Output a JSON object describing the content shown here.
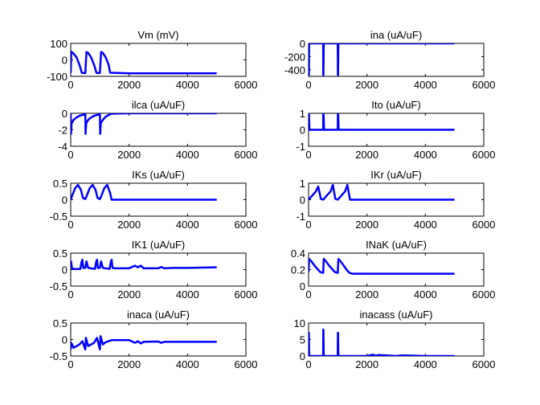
{
  "chart_data": [
    {
      "type": "line",
      "title": "Vm (mV)",
      "xlim": [
        0,
        6000
      ],
      "ylim": [
        -100,
        100
      ],
      "xticks": [
        "0",
        "2000",
        "4000",
        "6000"
      ],
      "yticks": [
        "-100",
        "0",
        "100"
      ],
      "series": [
        {
          "color": "#0000ff",
          "x": [
            0,
            20,
            100,
            200,
            300,
            380,
            420,
            500,
            540,
            600,
            700,
            800,
            880,
            920,
            1000,
            1040,
            1100,
            1200,
            1300,
            1350,
            2000,
            3000,
            4000,
            5000
          ],
          "y": [
            -80,
            50,
            38,
            15,
            -30,
            -78,
            -80,
            -80,
            48,
            42,
            15,
            -30,
            -78,
            -80,
            -80,
            48,
            42,
            15,
            -30,
            -78,
            -82,
            -82,
            -82,
            -82
          ]
        }
      ]
    },
    {
      "type": "line",
      "title": "ina (uA/uF)",
      "xlim": [
        0,
        6000
      ],
      "ylim": [
        -500,
        0
      ],
      "xticks": [
        "0",
        "2000",
        "4000",
        "6000"
      ],
      "yticks": [
        "-400",
        "-200",
        "0"
      ],
      "series": [
        {
          "color": "#0000ff",
          "x": [
            0,
            5,
            10,
            20,
            500,
            505,
            510,
            520,
            1000,
            1005,
            1010,
            1020,
            5000
          ],
          "y": [
            0,
            -480,
            -480,
            0,
            0,
            -480,
            -480,
            0,
            0,
            -480,
            -480,
            0,
            0
          ]
        }
      ]
    },
    {
      "type": "line",
      "title": "ilca (uA/uF)",
      "xlim": [
        0,
        6000
      ],
      "ylim": [
        -4,
        0
      ],
      "xticks": [
        "0",
        "2000",
        "4000",
        "6000"
      ],
      "yticks": [
        "-4",
        "-2",
        "0"
      ],
      "series": [
        {
          "color": "#0000ff",
          "x": [
            0,
            10,
            30,
            100,
            200,
            300,
            500,
            510,
            530,
            600,
            700,
            800,
            1000,
            1010,
            1030,
            1100,
            1200,
            1300,
            1400,
            2000,
            5000
          ],
          "y": [
            0,
            -2.5,
            -1.2,
            -0.8,
            -0.5,
            -0.3,
            -0.1,
            -2.5,
            -1.2,
            -0.8,
            -0.5,
            -0.3,
            -0.1,
            -2.5,
            -1.2,
            -0.8,
            -0.4,
            -0.2,
            -0.05,
            0,
            0
          ]
        }
      ]
    },
    {
      "type": "line",
      "title": "Ito (uA/uF)",
      "xlim": [
        0,
        6000
      ],
      "ylim": [
        -1,
        1
      ],
      "xticks": [
        "0",
        "2000",
        "4000",
        "6000"
      ],
      "yticks": [
        "-1",
        "0",
        "1"
      ],
      "series": [
        {
          "color": "#0000ff",
          "x": [
            0,
            5,
            15,
            30,
            500,
            505,
            515,
            530,
            1000,
            1005,
            1015,
            1030,
            5000
          ],
          "y": [
            0,
            1,
            0.9,
            0,
            0,
            1,
            0.9,
            0,
            0,
            1,
            0.9,
            0,
            0
          ]
        }
      ]
    },
    {
      "type": "line",
      "title": "IKs (uA/uF)",
      "xlim": [
        0,
        6000
      ],
      "ylim": [
        -0.5,
        0.5
      ],
      "xticks": [
        "0",
        "2000",
        "4000",
        "6000"
      ],
      "yticks": [
        "-0.5",
        "0",
        "0.5"
      ],
      "series": [
        {
          "color": "#0000ff",
          "x": [
            0,
            50,
            150,
            250,
            350,
            420,
            500,
            550,
            650,
            750,
            850,
            920,
            1000,
            1050,
            1150,
            1250,
            1350,
            1400,
            2000,
            3000,
            4000,
            5000
          ],
          "y": [
            0,
            0.12,
            0.35,
            0.45,
            0.3,
            0.05,
            0.02,
            0.12,
            0.35,
            0.45,
            0.3,
            0.05,
            0.02,
            0.12,
            0.35,
            0.45,
            0.2,
            0,
            0,
            0,
            0,
            0
          ]
        }
      ]
    },
    {
      "type": "line",
      "title": "IKr (uA/uF)",
      "xlim": [
        0,
        6000
      ],
      "ylim": [
        -1,
        1
      ],
      "xticks": [
        "0",
        "2000",
        "4000",
        "6000"
      ],
      "yticks": [
        "-1",
        "0",
        "1"
      ],
      "series": [
        {
          "color": "#0000ff",
          "x": [
            0,
            50,
            150,
            250,
            330,
            380,
            420,
            500,
            550,
            650,
            750,
            830,
            880,
            920,
            1000,
            1050,
            1150,
            1250,
            1330,
            1380,
            1420,
            2000,
            5000
          ],
          "y": [
            0,
            0.1,
            0.3,
            0.5,
            0.8,
            0.4,
            0.05,
            0,
            0.1,
            0.3,
            0.5,
            0.9,
            0.4,
            0.05,
            0,
            0.1,
            0.3,
            0.5,
            0.9,
            0.4,
            0,
            0,
            0
          ]
        }
      ]
    },
    {
      "type": "line",
      "title": "IK1 (uA/uF)",
      "xlim": [
        0,
        6000
      ],
      "ylim": [
        -0.5,
        0.5
      ],
      "xticks": [
        "0",
        "2000",
        "4000",
        "6000"
      ],
      "yticks": [
        "-0.5",
        "0",
        "0.5"
      ],
      "series": [
        {
          "color": "#0000ff",
          "x": [
            0,
            10,
            40,
            100,
            330,
            370,
            400,
            430,
            500,
            540,
            600,
            830,
            870,
            900,
            930,
            1000,
            1040,
            1100,
            1330,
            1370,
            1400,
            1430,
            1500,
            2000,
            2200,
            2300,
            2400,
            2500,
            3000,
            3100,
            3200,
            3500,
            4000,
            4500,
            5000
          ],
          "y": [
            0.05,
            0.25,
            0.05,
            0.02,
            0.02,
            0.22,
            0.3,
            0.05,
            0.05,
            0.25,
            0.05,
            0.02,
            0.22,
            0.3,
            0.05,
            0.05,
            0.25,
            0.05,
            0.02,
            0.22,
            0.3,
            0.05,
            0.04,
            0.04,
            0.12,
            0.07,
            0.12,
            0.04,
            0.04,
            0.08,
            0.04,
            0.05,
            0.05,
            0.06,
            0.07
          ]
        }
      ]
    },
    {
      "type": "line",
      "title": "INaK (uA/uF)",
      "xlim": [
        0,
        6000
      ],
      "ylim": [
        0,
        0.4
      ],
      "xticks": [
        "0",
        "2000",
        "4000",
        "6000"
      ],
      "yticks": [
        "0",
        "0.2",
        "0.4"
      ],
      "series": [
        {
          "color": "#0000ff",
          "x": [
            0,
            20,
            100,
            200,
            300,
            400,
            500,
            520,
            600,
            700,
            800,
            900,
            1000,
            1020,
            1100,
            1200,
            1300,
            1400,
            1500,
            2000,
            3000,
            4000,
            5000
          ],
          "y": [
            0.17,
            0.33,
            0.3,
            0.25,
            0.21,
            0.17,
            0.16,
            0.33,
            0.3,
            0.25,
            0.21,
            0.17,
            0.16,
            0.33,
            0.3,
            0.25,
            0.2,
            0.16,
            0.15,
            0.15,
            0.15,
            0.15,
            0.15
          ]
        }
      ]
    },
    {
      "type": "line",
      "title": "inaca (uA/uF)",
      "xlim": [
        0,
        6000
      ],
      "ylim": [
        -0.5,
        0.5
      ],
      "xticks": [
        "0",
        "2000",
        "4000",
        "6000"
      ],
      "yticks": [
        "-0.5",
        "0",
        "0.5"
      ],
      "series": [
        {
          "color": "#0000ff",
          "x": [
            0,
            20,
            100,
            200,
            300,
            400,
            500,
            520,
            600,
            700,
            800,
            900,
            1000,
            1020,
            1100,
            1200,
            1300,
            1400,
            1500,
            2000,
            2200,
            2300,
            2400,
            2500,
            3000,
            3100,
            3200,
            4000,
            5000
          ],
          "y": [
            -0.3,
            -0.1,
            -0.25,
            -0.2,
            -0.15,
            -0.05,
            -0.3,
            0.05,
            -0.2,
            -0.15,
            -0.1,
            0.05,
            -0.3,
            0.1,
            -0.15,
            -0.08,
            -0.05,
            -0.02,
            -0.02,
            -0.02,
            -0.1,
            -0.05,
            -0.12,
            -0.07,
            -0.06,
            -0.1,
            -0.07,
            -0.07,
            -0.07
          ]
        }
      ]
    },
    {
      "type": "line",
      "title": "inacass (uA/uF)",
      "xlim": [
        0,
        6000
      ],
      "ylim": [
        0,
        10
      ],
      "xticks": [
        "0",
        "2000",
        "4000",
        "6000"
      ],
      "yticks": [
        "0",
        "5",
        "10"
      ],
      "series": [
        {
          "color": "#0000ff",
          "x": [
            0,
            5,
            10,
            20,
            500,
            505,
            510,
            520,
            1000,
            1005,
            1010,
            1020,
            2000,
            2200,
            2300,
            2400,
            3000,
            3200,
            4000,
            5000
          ],
          "y": [
            0,
            7,
            7,
            0,
            0,
            8,
            8,
            0,
            0,
            7,
            7,
            0,
            0,
            0.4,
            0.1,
            0.3,
            0,
            0.2,
            0,
            0
          ]
        }
      ]
    }
  ]
}
